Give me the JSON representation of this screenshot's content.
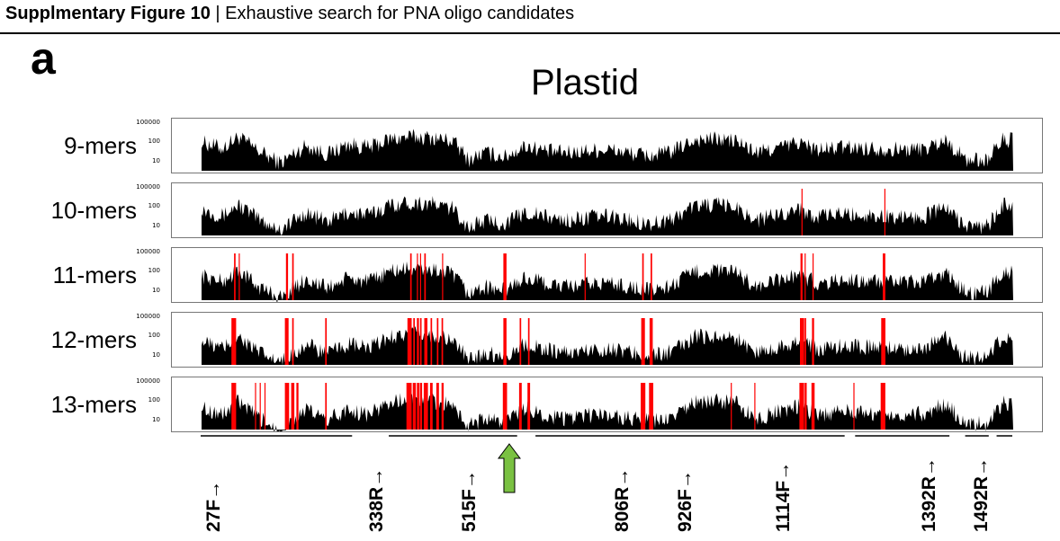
{
  "header": {
    "title_bold": "Supplmentary Figure 10",
    "separator": " | ",
    "title_rest": "Exhaustive search for PNA oligo candidates"
  },
  "panel_label": "a",
  "colors": {
    "bars": "#000000",
    "candidates": "#ff0000",
    "arrow": "#7ac142",
    "frame": "#777777"
  },
  "chart_data": {
    "type": "bar",
    "title": "Plastid",
    "xlabel": "",
    "ylabel": "",
    "y_scale": "log",
    "y_tick_labels": [
      "100000",
      "100",
      "10"
    ],
    "x_range": [
      1,
      1550
    ],
    "series": [
      {
        "name": "9-mers",
        "profile": [
          [
            1,
            3000
          ],
          [
            40,
            800
          ],
          [
            70,
            10000
          ],
          [
            110,
            400
          ],
          [
            150,
            30
          ],
          [
            200,
            1500
          ],
          [
            240,
            200
          ],
          [
            280,
            2000
          ],
          [
            320,
            900
          ],
          [
            360,
            6000
          ],
          [
            400,
            10000
          ],
          [
            440,
            8000
          ],
          [
            480,
            4000
          ],
          [
            510,
            60
          ],
          [
            540,
            300
          ],
          [
            580,
            120
          ],
          [
            620,
            1500
          ],
          [
            660,
            400
          ],
          [
            700,
            300
          ],
          [
            740,
            500
          ],
          [
            780,
            600
          ],
          [
            820,
            250
          ],
          [
            860,
            150
          ],
          [
            900,
            400
          ],
          [
            940,
            5000
          ],
          [
            980,
            6000
          ],
          [
            1020,
            4000
          ],
          [
            1060,
            300
          ],
          [
            1100,
            900
          ],
          [
            1140,
            3000
          ],
          [
            1180,
            500
          ],
          [
            1220,
            1000
          ],
          [
            1260,
            900
          ],
          [
            1300,
            700
          ],
          [
            1340,
            600
          ],
          [
            1380,
            700
          ],
          [
            1420,
            5000
          ],
          [
            1460,
            60
          ],
          [
            1500,
            60
          ],
          [
            1530,
            5000
          ]
        ],
        "candidates": []
      },
      {
        "name": "10-mers",
        "profile": [
          [
            1,
            2000
          ],
          [
            40,
            400
          ],
          [
            70,
            5000
          ],
          [
            110,
            200
          ],
          [
            150,
            20
          ],
          [
            200,
            800
          ],
          [
            240,
            120
          ],
          [
            280,
            900
          ],
          [
            320,
            500
          ],
          [
            360,
            5000
          ],
          [
            400,
            8000
          ],
          [
            440,
            6000
          ],
          [
            480,
            2000
          ],
          [
            510,
            30
          ],
          [
            540,
            150
          ],
          [
            580,
            80
          ],
          [
            620,
            1000
          ],
          [
            660,
            300
          ],
          [
            700,
            150
          ],
          [
            740,
            300
          ],
          [
            780,
            400
          ],
          [
            820,
            150
          ],
          [
            860,
            80
          ],
          [
            900,
            200
          ],
          [
            940,
            4000
          ],
          [
            980,
            5000
          ],
          [
            1020,
            3000
          ],
          [
            1060,
            150
          ],
          [
            1100,
            600
          ],
          [
            1140,
            2000
          ],
          [
            1180,
            300
          ],
          [
            1220,
            700
          ],
          [
            1260,
            500
          ],
          [
            1300,
            400
          ],
          [
            1340,
            350
          ],
          [
            1380,
            400
          ],
          [
            1420,
            3000
          ],
          [
            1460,
            40
          ],
          [
            1500,
            40
          ],
          [
            1530,
            4000
          ]
        ],
        "candidates": [
          [
            1146,
            1148
          ],
          [
            1304,
            1306
          ]
        ]
      },
      {
        "name": "11-mers",
        "profile": [
          [
            1,
            1200
          ],
          [
            40,
            300
          ],
          [
            70,
            4000
          ],
          [
            110,
            100
          ],
          [
            150,
            10
          ],
          [
            200,
            600
          ],
          [
            240,
            80
          ],
          [
            280,
            700
          ],
          [
            320,
            300
          ],
          [
            360,
            3500
          ],
          [
            400,
            6000
          ],
          [
            440,
            4500
          ],
          [
            480,
            1500
          ],
          [
            510,
            20
          ],
          [
            540,
            100
          ],
          [
            580,
            50
          ],
          [
            620,
            800
          ],
          [
            660,
            200
          ],
          [
            700,
            100
          ],
          [
            740,
            200
          ],
          [
            780,
            250
          ],
          [
            820,
            100
          ],
          [
            860,
            50
          ],
          [
            900,
            150
          ],
          [
            940,
            3000
          ],
          [
            980,
            4000
          ],
          [
            1020,
            2500
          ],
          [
            1060,
            100
          ],
          [
            1100,
            400
          ],
          [
            1140,
            1500
          ],
          [
            1180,
            200
          ],
          [
            1220,
            500
          ],
          [
            1260,
            400
          ],
          [
            1300,
            300
          ],
          [
            1340,
            250
          ],
          [
            1380,
            300
          ],
          [
            1420,
            2500
          ],
          [
            1460,
            30
          ],
          [
            1500,
            30
          ],
          [
            1530,
            3000
          ]
        ],
        "candidates": [
          [
            63,
            66
          ],
          [
            72,
            74
          ],
          [
            162,
            166
          ],
          [
            174,
            177
          ],
          [
            399,
            402
          ],
          [
            412,
            414
          ],
          [
            418,
            420
          ],
          [
            426,
            429
          ],
          [
            460,
            462
          ],
          [
            577,
            583
          ],
          [
            732,
            734
          ],
          [
            842,
            845
          ],
          [
            858,
            861
          ],
          [
            1144,
            1148
          ],
          [
            1152,
            1154
          ],
          [
            1167,
            1169
          ],
          [
            1301,
            1306
          ]
        ]
      },
      {
        "name": "12-mers",
        "profile": [
          [
            1,
            900
          ],
          [
            40,
            200
          ],
          [
            70,
            3000
          ],
          [
            110,
            80
          ],
          [
            150,
            8
          ],
          [
            200,
            500
          ],
          [
            240,
            60
          ],
          [
            280,
            500
          ],
          [
            320,
            200
          ],
          [
            360,
            3000
          ],
          [
            400,
            5000
          ],
          [
            440,
            4000
          ],
          [
            480,
            1200
          ],
          [
            510,
            15
          ],
          [
            540,
            80
          ],
          [
            580,
            40
          ],
          [
            620,
            700
          ],
          [
            660,
            150
          ],
          [
            700,
            80
          ],
          [
            740,
            150
          ],
          [
            780,
            200
          ],
          [
            820,
            80
          ],
          [
            860,
            40
          ],
          [
            900,
            100
          ],
          [
            940,
            2500
          ],
          [
            980,
            3500
          ],
          [
            1020,
            2000
          ],
          [
            1060,
            80
          ],
          [
            1100,
            300
          ],
          [
            1140,
            1200
          ],
          [
            1180,
            150
          ],
          [
            1220,
            400
          ],
          [
            1260,
            300
          ],
          [
            1300,
            250
          ],
          [
            1340,
            200
          ],
          [
            1380,
            250
          ],
          [
            1420,
            2000
          ],
          [
            1460,
            25
          ],
          [
            1500,
            25
          ],
          [
            1530,
            2500
          ]
        ],
        "candidates": [
          [
            58,
            67
          ],
          [
            160,
            167
          ],
          [
            174,
            177
          ],
          [
            237,
            240
          ],
          [
            394,
            402
          ],
          [
            405,
            408
          ],
          [
            412,
            416
          ],
          [
            418,
            421
          ],
          [
            426,
            432
          ],
          [
            438,
            441
          ],
          [
            450,
            453
          ],
          [
            459,
            462
          ],
          [
            577,
            583
          ],
          [
            608,
            611
          ],
          [
            624,
            627
          ],
          [
            840,
            847
          ],
          [
            856,
            862
          ],
          [
            1143,
            1151
          ],
          [
            1152,
            1155
          ],
          [
            1166,
            1170
          ],
          [
            1298,
            1306
          ]
        ]
      },
      {
        "name": "13-mers",
        "profile": [
          [
            1,
            700
          ],
          [
            40,
            150
          ],
          [
            70,
            2500
          ],
          [
            110,
            60
          ],
          [
            150,
            6
          ],
          [
            200,
            400
          ],
          [
            240,
            50
          ],
          [
            280,
            400
          ],
          [
            320,
            150
          ],
          [
            360,
            2500
          ],
          [
            400,
            4500
          ],
          [
            440,
            3500
          ],
          [
            480,
            1000
          ],
          [
            510,
            12
          ],
          [
            540,
            60
          ],
          [
            580,
            30
          ],
          [
            620,
            600
          ],
          [
            660,
            120
          ],
          [
            700,
            60
          ],
          [
            740,
            120
          ],
          [
            780,
            150
          ],
          [
            820,
            60
          ],
          [
            860,
            30
          ],
          [
            900,
            80
          ],
          [
            940,
            2000
          ],
          [
            980,
            3000
          ],
          [
            1020,
            1800
          ],
          [
            1060,
            60
          ],
          [
            1100,
            250
          ],
          [
            1140,
            1000
          ],
          [
            1180,
            120
          ],
          [
            1220,
            300
          ],
          [
            1260,
            250
          ],
          [
            1300,
            200
          ],
          [
            1340,
            150
          ],
          [
            1380,
            200
          ],
          [
            1420,
            1800
          ],
          [
            1460,
            20
          ],
          [
            1500,
            20
          ],
          [
            1530,
            2000
          ]
        ],
        "candidates": [
          [
            58,
            67
          ],
          [
            103,
            105
          ],
          [
            112,
            114
          ],
          [
            121,
            123
          ],
          [
            160,
            168
          ],
          [
            172,
            178
          ],
          [
            182,
            186
          ],
          [
            237,
            240
          ],
          [
            392,
            402
          ],
          [
            404,
            410
          ],
          [
            412,
            417
          ],
          [
            418,
            422
          ],
          [
            425,
            433
          ],
          [
            437,
            442
          ],
          [
            449,
            454
          ],
          [
            459,
            463
          ],
          [
            576,
            584
          ],
          [
            607,
            612
          ],
          [
            623,
            628
          ],
          [
            839,
            848
          ],
          [
            855,
            863
          ],
          [
            1011,
            1013
          ],
          [
            1056,
            1058
          ],
          [
            1142,
            1151
          ],
          [
            1152,
            1156
          ],
          [
            1165,
            1171
          ],
          [
            1245,
            1247
          ],
          [
            1297,
            1306
          ]
        ]
      }
    ],
    "primers": [
      {
        "label": "27F→",
        "pos": 27
      },
      {
        "label": "338R→",
        "pos": 338
      },
      {
        "label": "515F→",
        "pos": 515
      },
      {
        "label": "806R→",
        "pos": 806
      },
      {
        "label": "926F→",
        "pos": 926
      },
      {
        "label": "1114F→",
        "pos": 1114
      },
      {
        "label": "1392R→",
        "pos": 1392
      },
      {
        "label": "1492R→",
        "pos": 1492
      }
    ],
    "highlight_position": 590,
    "gaps_in_coverage": [
      [
        290,
        360
      ],
      [
        605,
        640
      ],
      [
        1230,
        1250
      ],
      [
        1430,
        1460
      ],
      [
        1505,
        1520
      ]
    ]
  }
}
